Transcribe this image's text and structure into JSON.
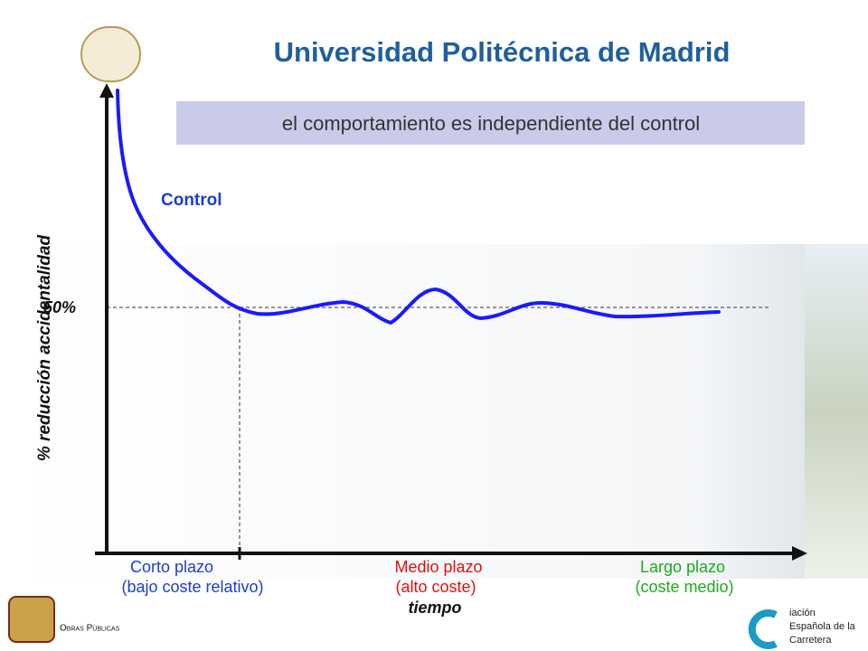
{
  "header": {
    "title": "Universidad Politécnica de Madrid",
    "subtitle": "el comportamiento es independiente del control"
  },
  "diagram": {
    "curve_label": "Control",
    "y_axis_label": "% reducción accidentalidad",
    "level_label": "50%",
    "x_groups": [
      {
        "label": "Corto plazo",
        "note": "(bajo coste relativo)"
      },
      {
        "label": "Medio plazo",
        "note": "(alto coste)"
      },
      {
        "label": "Largo plazo",
        "note": "(coste medio)"
      }
    ],
    "x_axis_label": "tiempo"
  },
  "footer": {
    "left_logo": "Obras Públicas",
    "right_logo": [
      "iación",
      "Española de la",
      "Carretera"
    ]
  }
}
